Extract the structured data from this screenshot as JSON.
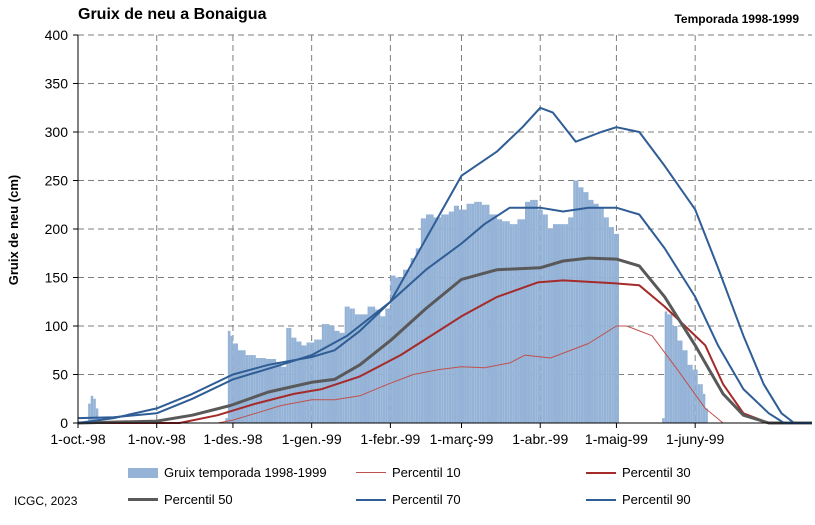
{
  "header": {
    "title": "Gruix de neu a Bonaigua",
    "season": "Temporada 1998-1999"
  },
  "footer": {
    "credit": "ICGC, 2023"
  },
  "colors": {
    "bars": "#95B3D7",
    "p10": "#C0504D",
    "p30": "#A52A2A",
    "p50": "#595959",
    "p70": "#2F5D95",
    "p90": "#2F5D95",
    "grid": "#7F7F7F"
  },
  "chart_data": {
    "type": "bar",
    "ylabel": "Gruix de neu (cm)",
    "ylim": [
      0,
      400
    ],
    "yticks": [
      0,
      50,
      100,
      150,
      200,
      250,
      300,
      350,
      400
    ],
    "xlabel": "",
    "x_start": "1998-10-01",
    "x_end": "1999-07-17",
    "xticks": [
      {
        "date": "1998-10-01",
        "label": "1-oct.-98"
      },
      {
        "date": "1998-11-01",
        "label": "1-nov.-98"
      },
      {
        "date": "1998-12-01",
        "label": "1-des.-98"
      },
      {
        "date": "1999-01-01",
        "label": "1-gen.-99"
      },
      {
        "date": "1999-02-01",
        "label": "1-febr.-99"
      },
      {
        "date": "1999-03-01",
        "label": "1-març-99"
      },
      {
        "date": "1999-04-01",
        "label": "1-abr.-99"
      },
      {
        "date": "1999-05-01",
        "label": "1-maig-99"
      },
      {
        "date": "1999-06-01",
        "label": "1-juny-99"
      }
    ],
    "grid": true,
    "legend_position": "bottom",
    "series": [
      {
        "name": "Gruix temporada 1998-1999",
        "type": "bar",
        "color_key": "bars",
        "points": [
          [
            "1998-10-05",
            20
          ],
          [
            "1998-10-06",
            28
          ],
          [
            "1998-10-07",
            25
          ],
          [
            "1998-10-08",
            15
          ],
          [
            "1998-10-09",
            5
          ],
          [
            "1998-11-28",
            5
          ],
          [
            "1998-11-29",
            95
          ],
          [
            "1998-11-30",
            90
          ],
          [
            "1998-12-01",
            82
          ],
          [
            "1998-12-03",
            75
          ],
          [
            "1998-12-06",
            70
          ],
          [
            "1998-12-10",
            67
          ],
          [
            "1998-12-14",
            66
          ],
          [
            "1998-12-18",
            63
          ],
          [
            "1998-12-20",
            58
          ],
          [
            "1998-12-22",
            98
          ],
          [
            "1998-12-24",
            88
          ],
          [
            "1998-12-26",
            84
          ],
          [
            "1998-12-28",
            80
          ],
          [
            "1998-12-30",
            83
          ],
          [
            "1999-01-02",
            86
          ],
          [
            "1999-01-05",
            102
          ],
          [
            "1999-01-08",
            100
          ],
          [
            "1999-01-10",
            95
          ],
          [
            "1999-01-12",
            93
          ],
          [
            "1999-01-14",
            120
          ],
          [
            "1999-01-16",
            118
          ],
          [
            "1999-01-18",
            112
          ],
          [
            "1999-01-20",
            112
          ],
          [
            "1999-01-23",
            120
          ],
          [
            "1999-01-26",
            117
          ],
          [
            "1999-01-28",
            110
          ],
          [
            "1999-01-30",
            118
          ],
          [
            "1999-02-01",
            152
          ],
          [
            "1999-02-03",
            150
          ],
          [
            "1999-02-06",
            158
          ],
          [
            "1999-02-09",
            170
          ],
          [
            "1999-02-11",
            180
          ],
          [
            "1999-02-13",
            211
          ],
          [
            "1999-02-15",
            215
          ],
          [
            "1999-02-18",
            212
          ],
          [
            "1999-02-21",
            215
          ],
          [
            "1999-02-24",
            218
          ],
          [
            "1999-02-26",
            224
          ],
          [
            "1999-02-28",
            220
          ],
          [
            "1999-03-03",
            226
          ],
          [
            "1999-03-06",
            228
          ],
          [
            "1999-03-09",
            225
          ],
          [
            "1999-03-12",
            215
          ],
          [
            "1999-03-15",
            210
          ],
          [
            "1999-03-17",
            208
          ],
          [
            "1999-03-20",
            205
          ],
          [
            "1999-03-23",
            210
          ],
          [
            "1999-03-26",
            228
          ],
          [
            "1999-03-28",
            230
          ],
          [
            "1999-03-31",
            220
          ],
          [
            "1999-04-02",
            215
          ],
          [
            "1999-04-04",
            200
          ],
          [
            "1999-04-06",
            205
          ],
          [
            "1999-04-09",
            205
          ],
          [
            "1999-04-12",
            212
          ],
          [
            "1999-04-14",
            250
          ],
          [
            "1999-04-16",
            243
          ],
          [
            "1999-04-18",
            238
          ],
          [
            "1999-04-20",
            230
          ],
          [
            "1999-04-22",
            226
          ],
          [
            "1999-04-24",
            222
          ],
          [
            "1999-04-26",
            212
          ],
          [
            "1999-04-28",
            202
          ],
          [
            "1999-04-30",
            195
          ],
          [
            "1999-05-01",
            195
          ],
          [
            "1999-05-19",
            5
          ],
          [
            "1999-05-20",
            115
          ],
          [
            "1999-05-21",
            112
          ],
          [
            "1999-05-23",
            100
          ],
          [
            "1999-05-25",
            85
          ],
          [
            "1999-05-27",
            75
          ],
          [
            "1999-05-29",
            60
          ],
          [
            "1999-05-31",
            55
          ],
          [
            "1999-06-02",
            40
          ],
          [
            "1999-06-04",
            30
          ],
          [
            "1999-06-05",
            15
          ]
        ]
      },
      {
        "name": "Percentil 10",
        "type": "line",
        "color_key": "p10",
        "width": 1,
        "points": [
          [
            "1998-10-01",
            0
          ],
          [
            "1998-11-25",
            0
          ],
          [
            "1998-12-01",
            3
          ],
          [
            "1998-12-10",
            10
          ],
          [
            "1998-12-20",
            18
          ],
          [
            "1999-01-01",
            24
          ],
          [
            "1999-01-10",
            24
          ],
          [
            "1999-01-20",
            28
          ],
          [
            "1999-01-31",
            40
          ],
          [
            "1999-02-10",
            50
          ],
          [
            "1999-02-20",
            55
          ],
          [
            "1999-03-01",
            58
          ],
          [
            "1999-03-10",
            57
          ],
          [
            "1999-03-20",
            62
          ],
          [
            "1999-03-26",
            70
          ],
          [
            "1999-04-05",
            67
          ],
          [
            "1999-04-20",
            82
          ],
          [
            "1999-05-01",
            100
          ],
          [
            "1999-05-05",
            100
          ],
          [
            "1999-05-15",
            90
          ],
          [
            "1999-05-25",
            55
          ],
          [
            "1999-06-05",
            15
          ],
          [
            "1999-06-12",
            0
          ],
          [
            "1999-07-17",
            0
          ]
        ]
      },
      {
        "name": "Percentil 30",
        "type": "line",
        "color_key": "p30",
        "width": 2,
        "points": [
          [
            "1998-10-01",
            0
          ],
          [
            "1998-11-10",
            0
          ],
          [
            "1998-11-25",
            8
          ],
          [
            "1998-12-10",
            20
          ],
          [
            "1998-12-25",
            30
          ],
          [
            "1999-01-05",
            35
          ],
          [
            "1999-01-20",
            48
          ],
          [
            "1999-02-05",
            70
          ],
          [
            "1999-02-20",
            95
          ],
          [
            "1999-03-01",
            110
          ],
          [
            "1999-03-15",
            130
          ],
          [
            "1999-03-31",
            145
          ],
          [
            "1999-04-10",
            147
          ],
          [
            "1999-04-30",
            144
          ],
          [
            "1999-05-10",
            142
          ],
          [
            "1999-05-20",
            120
          ],
          [
            "1999-05-28",
            100
          ],
          [
            "1999-06-05",
            80
          ],
          [
            "1999-06-12",
            40
          ],
          [
            "1999-06-20",
            10
          ],
          [
            "1999-06-30",
            0
          ],
          [
            "1999-07-17",
            0
          ]
        ]
      },
      {
        "name": "Percentil 50",
        "type": "line",
        "color_key": "p50",
        "width": 3,
        "points": [
          [
            "1998-10-01",
            0
          ],
          [
            "1998-11-01",
            2
          ],
          [
            "1998-11-15",
            8
          ],
          [
            "1998-11-30",
            18
          ],
          [
            "1998-12-15",
            32
          ],
          [
            "1999-01-01",
            42
          ],
          [
            "1999-01-10",
            45
          ],
          [
            "1999-01-20",
            60
          ],
          [
            "1999-02-01",
            85
          ],
          [
            "1999-02-15",
            118
          ],
          [
            "1999-03-01",
            148
          ],
          [
            "1999-03-15",
            158
          ],
          [
            "1999-04-01",
            160
          ],
          [
            "1999-04-10",
            167
          ],
          [
            "1999-04-20",
            170
          ],
          [
            "1999-05-01",
            169
          ],
          [
            "1999-05-10",
            162
          ],
          [
            "1999-05-20",
            130
          ],
          [
            "1999-06-01",
            80
          ],
          [
            "1999-06-12",
            30
          ],
          [
            "1999-06-20",
            8
          ],
          [
            "1999-06-30",
            0
          ],
          [
            "1999-07-17",
            0
          ]
        ]
      },
      {
        "name": "Percentil 70",
        "type": "line",
        "color_key": "p70",
        "width": 2,
        "points": [
          [
            "1998-10-01",
            0
          ],
          [
            "1998-10-15",
            5
          ],
          [
            "1998-11-01",
            15
          ],
          [
            "1998-11-15",
            30
          ],
          [
            "1998-12-01",
            50
          ],
          [
            "1998-12-15",
            60
          ],
          [
            "1999-01-01",
            68
          ],
          [
            "1999-01-10",
            75
          ],
          [
            "1999-01-20",
            95
          ],
          [
            "1999-02-01",
            125
          ],
          [
            "1999-02-15",
            158
          ],
          [
            "1999-03-01",
            185
          ],
          [
            "1999-03-10",
            205
          ],
          [
            "1999-03-20",
            222
          ],
          [
            "1999-04-01",
            222
          ],
          [
            "1999-04-10",
            218
          ],
          [
            "1999-04-20",
            222
          ],
          [
            "1999-05-01",
            222
          ],
          [
            "1999-05-10",
            215
          ],
          [
            "1999-05-20",
            180
          ],
          [
            "1999-06-01",
            130
          ],
          [
            "1999-06-10",
            80
          ],
          [
            "1999-06-20",
            35
          ],
          [
            "1999-06-30",
            10
          ],
          [
            "1999-07-06",
            0
          ],
          [
            "1999-07-17",
            0
          ]
        ]
      },
      {
        "name": "Percentil 90",
        "type": "line",
        "color_key": "p90",
        "width": 2,
        "points": [
          [
            "1998-10-01",
            5
          ],
          [
            "1998-10-15",
            6
          ],
          [
            "1998-11-01",
            10
          ],
          [
            "1998-11-15",
            25
          ],
          [
            "1998-12-01",
            45
          ],
          [
            "1998-12-20",
            60
          ],
          [
            "1999-01-01",
            70
          ],
          [
            "1999-01-15",
            90
          ],
          [
            "1999-02-01",
            125
          ],
          [
            "1999-02-15",
            190
          ],
          [
            "1999-03-01",
            255
          ],
          [
            "1999-03-15",
            280
          ],
          [
            "1999-03-25",
            305
          ],
          [
            "1999-04-01",
            325
          ],
          [
            "1999-04-06",
            320
          ],
          [
            "1999-04-15",
            290
          ],
          [
            "1999-04-25",
            300
          ],
          [
            "1999-05-01",
            305
          ],
          [
            "1999-05-10",
            300
          ],
          [
            "1999-05-20",
            265
          ],
          [
            "1999-06-01",
            220
          ],
          [
            "1999-06-10",
            160
          ],
          [
            "1999-06-20",
            90
          ],
          [
            "1999-06-28",
            40
          ],
          [
            "1999-07-05",
            10
          ],
          [
            "1999-07-10",
            0
          ],
          [
            "1999-07-17",
            0
          ]
        ]
      }
    ]
  }
}
